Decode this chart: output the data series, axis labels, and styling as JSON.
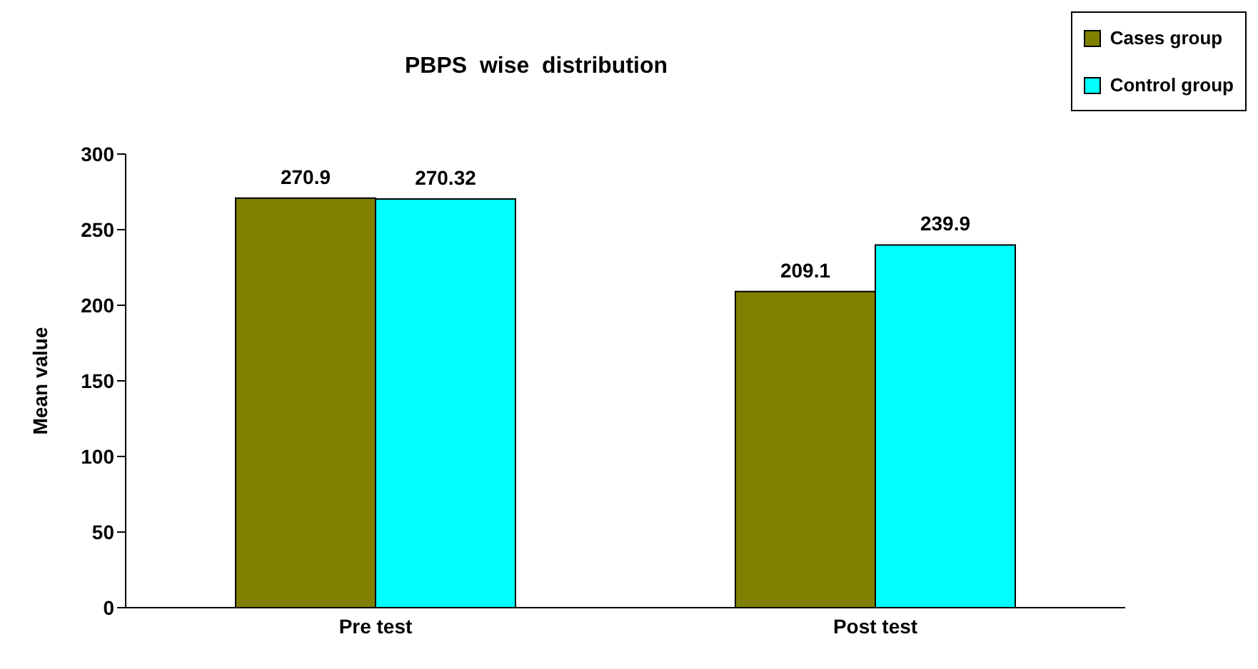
{
  "chart_data": {
    "type": "bar",
    "title": "PBPS  wise  distribution",
    "ylabel": "Mean value",
    "categories": [
      "Pre test",
      "Post test"
    ],
    "series": [
      {
        "name": "Cases group",
        "color": "#808000",
        "values": [
          270.9,
          209.1
        ]
      },
      {
        "name": "Control group",
        "color": "#00ffff",
        "values": [
          270.32,
          239.9
        ]
      }
    ],
    "ylim": [
      0,
      300
    ],
    "yticks": [
      0,
      50,
      100,
      150,
      200,
      250,
      300
    ],
    "grid": false,
    "legend": "top right",
    "data_labels": true
  }
}
